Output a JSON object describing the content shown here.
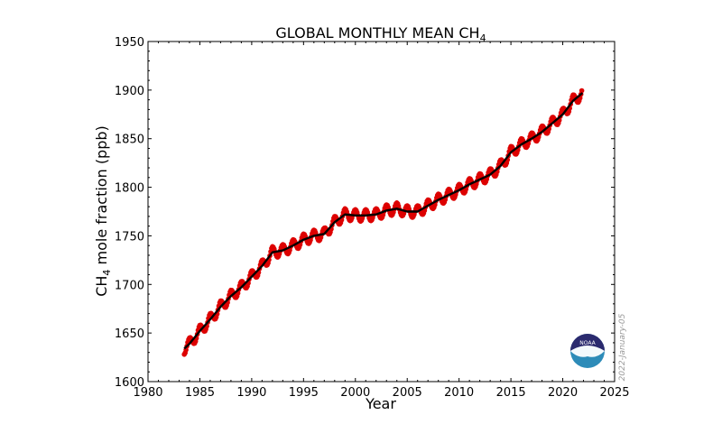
{
  "colors": {
    "monthly_points": "#dd0000",
    "trend_line": "#000000",
    "noaa_dark": "#2b2a6e",
    "noaa_light": "#2d8bb8"
  },
  "logo": {
    "icon": "noaa-logo-icon",
    "text": "NOAA"
  },
  "side_date": "2022-January-05",
  "chart_data": {
    "type": "line",
    "title": "GLOBAL MONTHLY MEAN CH",
    "title_subscript": "4",
    "xlabel": "Year",
    "ylabel_prefix": "CH",
    "ylabel_subscript": "4",
    "ylabel_suffix": " mole fraction (ppb)",
    "xlim": [
      1980,
      2025
    ],
    "ylim": [
      1600,
      1950
    ],
    "xticks": [
      1980,
      1985,
      1990,
      1995,
      2000,
      2005,
      2010,
      2015,
      2020,
      2025
    ],
    "yticks": [
      1600,
      1650,
      1700,
      1750,
      1800,
      1850,
      1900,
      1950
    ],
    "grid": false,
    "series": [
      {
        "kind": "monthly_mean_points",
        "seasonal_amplitude_ppb": 6,
        "note_points_are_monthly": true
      },
      {
        "kind": "trend_line",
        "x": [
          1983.5,
          1984,
          1985,
          1986,
          1987,
          1988,
          1989,
          1990,
          1991,
          1992,
          1993,
          1994,
          1995,
          1996,
          1997,
          1998,
          1999,
          2000,
          2001,
          2002,
          2003,
          2004,
          2005,
          2006,
          2007,
          2008,
          2009,
          2010,
          2011,
          2012,
          2013,
          2014,
          2015,
          2016,
          2017,
          2018,
          2019,
          2020,
          2021,
          2021.9
        ],
        "y": [
          1634,
          1639,
          1652,
          1664,
          1677,
          1688,
          1697,
          1708,
          1719,
          1733,
          1735,
          1740,
          1746,
          1750,
          1752,
          1764,
          1772,
          1771,
          1771,
          1772,
          1776,
          1778,
          1775,
          1775,
          1781,
          1787,
          1792,
          1797,
          1803,
          1808,
          1813,
          1822,
          1836,
          1844,
          1850,
          1857,
          1866,
          1875,
          1889,
          1897
        ]
      }
    ]
  }
}
